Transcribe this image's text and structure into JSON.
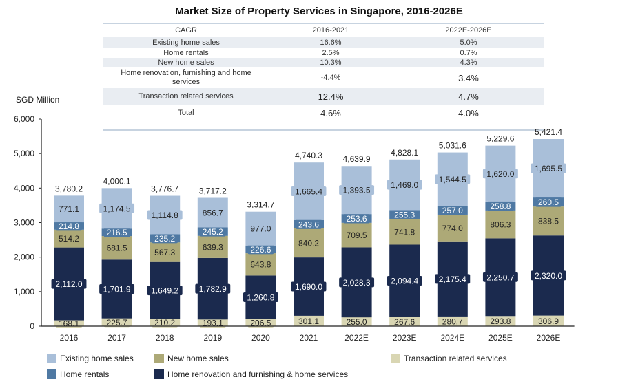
{
  "title": "Market Size of Property Services in Singapore, 2016-2026E",
  "cagr_table": {
    "header": [
      "CAGR",
      "2016-2021",
      "2022E-2026E"
    ],
    "rows": [
      {
        "label": "Existing home sales",
        "p1": "16.6%",
        "p2": "5.0%"
      },
      {
        "label": "Home rentals",
        "p1": "2.5%",
        "p2": "0.7%"
      },
      {
        "label": "New home sales",
        "p1": "10.3%",
        "p2": "4.3%"
      },
      {
        "label": "Home renovation, furnishing and home services",
        "p1": "-4.4%",
        "p2": "3.4%"
      },
      {
        "label": "Transaction related services",
        "p1": "12.4%",
        "p2": "4.7%"
      },
      {
        "label": "Total",
        "p1": "4.6%",
        "p2": "4.0%"
      }
    ]
  },
  "chart_data": {
    "type": "bar",
    "stacked": true,
    "title": "Market Size of Property Services in Singapore, 2016-2026E",
    "ylabel": "SGD Million",
    "xlabel": "",
    "ylim": [
      0,
      6000
    ],
    "yticks": [
      0,
      1000,
      2000,
      3000,
      4000,
      5000,
      6000
    ],
    "ytick_labels": [
      "0",
      "1,000",
      "2,000",
      "3,000",
      "4,000",
      "5,000",
      "6,000"
    ],
    "grid": false,
    "legend_position": "bottom",
    "categories": [
      "2016",
      "2017",
      "2018",
      "2019",
      "2020",
      "2021",
      "2022E",
      "2023E",
      "2024E",
      "2025E",
      "2026E"
    ],
    "series": [
      {
        "name": "Transaction related services",
        "color": "#d9d6b3",
        "label_color": "#222222",
        "values": [
          168.1,
          225.7,
          210.2,
          193.1,
          206.5,
          301.1,
          255.0,
          267.6,
          280.7,
          293.8,
          306.9
        ],
        "labels": [
          "168.1",
          "225.7",
          "210.2",
          "193.1",
          "206.5",
          "301.1",
          "255.0",
          "267.6",
          "280.7",
          "293.8",
          "306.9"
        ]
      },
      {
        "name": "Home renovation and furnishing & home services",
        "color": "#1b2a4e",
        "label_color": "#ffffff",
        "values": [
          2112.0,
          1701.9,
          1649.2,
          1782.9,
          1260.8,
          1690.0,
          2028.3,
          2094.4,
          2175.4,
          2250.7,
          2320.0
        ],
        "labels": [
          "2,112.0",
          "1,701.9",
          "1,649.2",
          "1,782.9",
          "1,260.8",
          "1,690.0",
          "2,028.3",
          "2,094.4",
          "2,175.4",
          "2,250.7",
          "2,320.0"
        ]
      },
      {
        "name": "New home sales",
        "color": "#ada977",
        "label_color": "#222222",
        "values": [
          514.2,
          681.5,
          567.3,
          639.3,
          643.8,
          840.2,
          709.5,
          741.8,
          774.0,
          806.3,
          838.5
        ],
        "labels": [
          "514.2",
          "681.5",
          "567.3",
          "639.3",
          "643.8",
          "840.2",
          "709.5",
          "741.8",
          "774.0",
          "806.3",
          "838.5"
        ]
      },
      {
        "name": "Home rentals",
        "color": "#4f79a3",
        "label_color": "#ffffff",
        "values": [
          214.8,
          216.5,
          235.2,
          245.2,
          226.6,
          243.6,
          253.6,
          255.3,
          257.0,
          258.8,
          260.5
        ],
        "labels": [
          "214.8",
          "216.5",
          "235.2",
          "245.2",
          "226.6",
          "243.6",
          "253.6",
          "255.3",
          "257.0",
          "258.8",
          "260.5"
        ]
      },
      {
        "name": "Existing home sales",
        "color": "#a9bfd9",
        "label_color": "#222222",
        "values": [
          771.1,
          1174.5,
          1114.8,
          856.7,
          977.0,
          1665.4,
          1393.5,
          1469.0,
          1544.5,
          1620.0,
          1695.5
        ],
        "labels": [
          "771.1",
          "1,174.5",
          "1,114.8",
          "856.7",
          "977.0",
          "1,665.4",
          "1,393.5",
          "1,469.0",
          "1,544.5",
          "1,620.0",
          "1,695.5"
        ]
      }
    ],
    "totals": [
      3780.2,
      4000.1,
      3776.7,
      3717.2,
      3314.7,
      4740.3,
      4639.9,
      4828.1,
      5031.6,
      5229.6,
      5421.4
    ],
    "total_labels": [
      "3,780.2",
      "4,000.1",
      "3,776.7",
      "3,717.2",
      "3,314.7",
      "4,740.3",
      "4,639.9",
      "4,828.1",
      "5,031.6",
      "5,229.6",
      "5,421.4"
    ]
  },
  "legend": [
    {
      "name": "Existing home sales",
      "color": "#a9bfd9"
    },
    {
      "name": "New home sales",
      "color": "#ada977"
    },
    {
      "name": "Transaction related services",
      "color": "#d9d6b3"
    },
    {
      "name": "Home rentals",
      "color": "#4f79a3"
    },
    {
      "name": "Home renovation and furnishing & home services",
      "color": "#1b2a4e"
    }
  ]
}
